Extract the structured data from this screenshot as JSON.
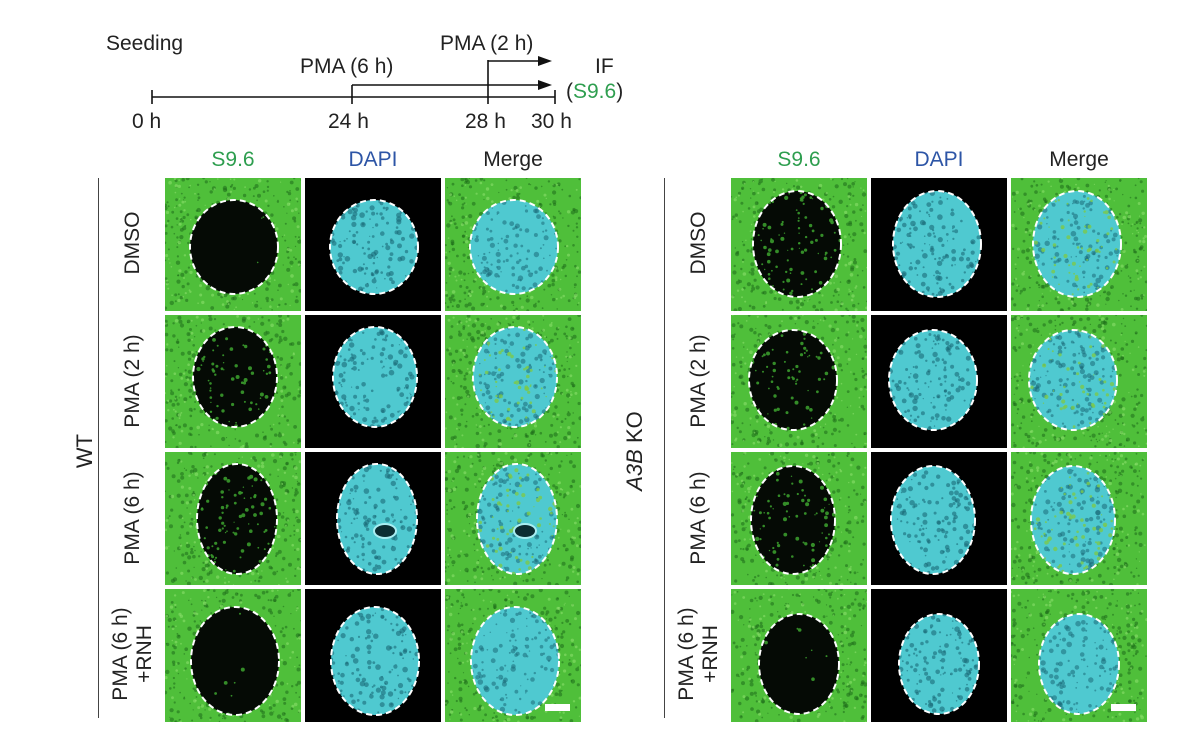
{
  "timeline": {
    "seeding": "Seeding",
    "pma6": "PMA (6 h)",
    "pma2": "PMA (2 h)",
    "if_label": "IF",
    "if_sub_open": "(",
    "if_sub_s96": "S9.6",
    "if_sub_close": ")",
    "ticks": [
      "0 h",
      "24 h",
      "28 h",
      "30 h"
    ]
  },
  "columns": {
    "s96": "S9.6",
    "dapi": "DAPI",
    "merge": "Merge"
  },
  "groups": [
    {
      "name": "WT",
      "italic_part": "",
      "rows": [
        "DMSO",
        "PMA (2 h)",
        "PMA (6 h)",
        "PMA (6 h)\n+RNH"
      ]
    },
    {
      "name": "KO",
      "italic_part": "A3B",
      "rows": [
        "DMSO",
        "PMA (2 h)",
        "PMA (6 h)",
        "PMA (6 h)\n+RNH"
      ]
    }
  ],
  "colors": {
    "green_channel": "#4fbf3a",
    "green_dark": "#1d6b1a",
    "cyan_channel": "#4fc9d0",
    "cyan_dark": "#1b6a78",
    "label_green": "#2e9e4f",
    "label_blue": "#2d55a6"
  },
  "icons": {
    "arrow": "arrow-right-icon",
    "scalebar": "scale-bar-icon"
  }
}
